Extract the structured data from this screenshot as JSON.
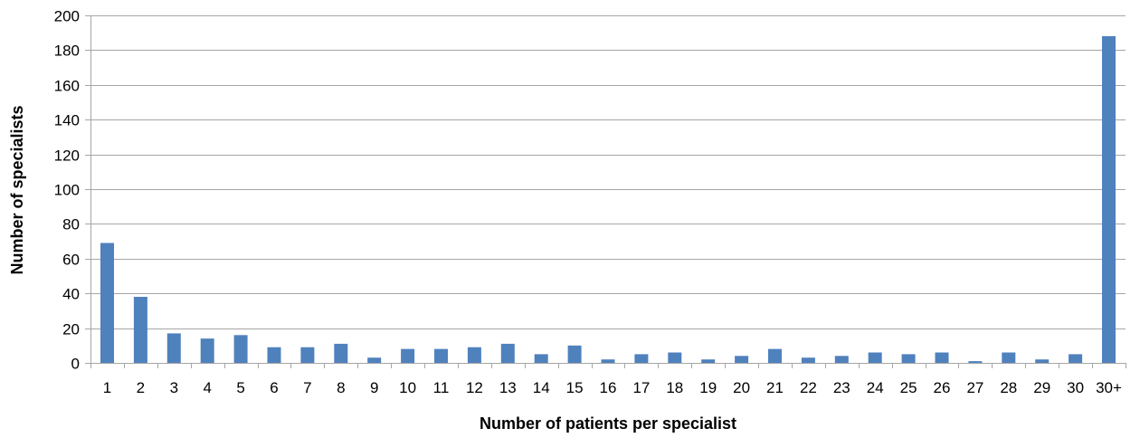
{
  "chart_data": {
    "type": "bar",
    "title": "",
    "xlabel": "Number of patients per specialist",
    "ylabel": "Number of specialists",
    "ylim": [
      0,
      200
    ],
    "yticks": [
      0,
      20,
      40,
      60,
      80,
      100,
      120,
      140,
      160,
      180,
      200
    ],
    "grid": true,
    "legend": "none",
    "bar_color": "#4f81bd",
    "categories": [
      "1",
      "2",
      "3",
      "4",
      "5",
      "6",
      "7",
      "8",
      "9",
      "10",
      "11",
      "12",
      "13",
      "14",
      "15",
      "16",
      "17",
      "18",
      "19",
      "20",
      "21",
      "22",
      "23",
      "24",
      "25",
      "26",
      "27",
      "28",
      "29",
      "30",
      "30+"
    ],
    "values": [
      69,
      38,
      17,
      14,
      16,
      9,
      9,
      11,
      3,
      8,
      8,
      9,
      11,
      5,
      10,
      2,
      5,
      6,
      2,
      4,
      8,
      3,
      4,
      6,
      5,
      6,
      1,
      6,
      2,
      5,
      188
    ]
  }
}
